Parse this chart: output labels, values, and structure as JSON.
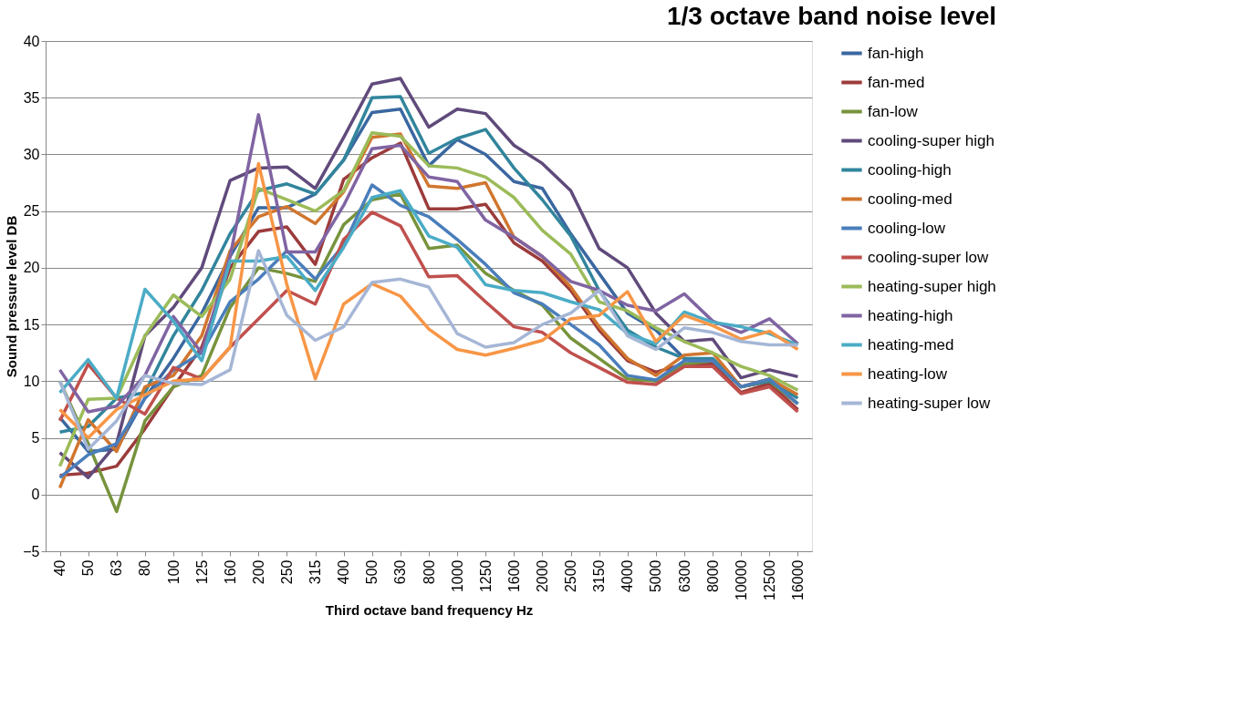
{
  "chart_data": {
    "type": "line",
    "title": "1/3 octave band noise level",
    "xlabel": "Third octave band frequency Hz",
    "ylabel": "Sound pressure level DB",
    "categories": [
      "40",
      "50",
      "63",
      "80",
      "100",
      "125",
      "160",
      "200",
      "250",
      "315",
      "400",
      "500",
      "630",
      "800",
      "1000",
      "1250",
      "1600",
      "2000",
      "2500",
      "3150",
      "4000",
      "5000",
      "6300",
      "8000",
      "10000",
      "12500",
      "16000"
    ],
    "ylim": [
      -5,
      40
    ],
    "yticks": [
      -5,
      0,
      5,
      10,
      15,
      20,
      25,
      30,
      35,
      40
    ],
    "grid": "y",
    "legend": "right",
    "marker": "none",
    "line_style": "solid",
    "series": [
      {
        "name": "fan-high",
        "color": "#3a67a0",
        "values": [
          6.8,
          3.8,
          4.0,
          8.5,
          12,
          16,
          21,
          25.3,
          25.3,
          26.5,
          29.5,
          33.7,
          34,
          29,
          31.3,
          30,
          27.6,
          27,
          23,
          19.5,
          16,
          14.5,
          12,
          11.8,
          9.5,
          10,
          8
        ]
      },
      {
        "name": "fan-med",
        "color": "#9c3b3b",
        "values": [
          1.7,
          1.9,
          2.5,
          5.8,
          9.5,
          13,
          20,
          23.2,
          23.6,
          20.3,
          27.8,
          29.7,
          31,
          25.2,
          25.2,
          25.6,
          22.2,
          20.6,
          18,
          14.5,
          11.8,
          10.8,
          11.5,
          11.5,
          9,
          9.8,
          7.5
        ]
      },
      {
        "name": "fan-low",
        "color": "#77933c",
        "values": [
          10,
          4.5,
          -1.5,
          6.5,
          9.5,
          10.5,
          16.5,
          20,
          19.5,
          18.8,
          23.8,
          26,
          26.5,
          21.7,
          22,
          19.5,
          18,
          16.7,
          13.8,
          12,
          10.2,
          10,
          11.5,
          11.8,
          9.5,
          10,
          8
        ]
      },
      {
        "name": "cooling-super high",
        "color": "#604a7b",
        "values": [
          3.7,
          1.5,
          4.5,
          14,
          16.5,
          20,
          27.7,
          28.8,
          28.9,
          27,
          31.5,
          36.2,
          36.7,
          32.4,
          34,
          33.6,
          30.8,
          29.2,
          26.8,
          21.7,
          20,
          16,
          13.5,
          13.7,
          10.3,
          11,
          10.4
        ]
      },
      {
        "name": "cooling-high",
        "color": "#31859c",
        "values": [
          5.5,
          6,
          8.5,
          9,
          14,
          18,
          23,
          26.8,
          27.4,
          26.5,
          29.5,
          35,
          35.1,
          30.1,
          31.4,
          32.2,
          28.8,
          26,
          22.8,
          18,
          14.5,
          13,
          12,
          12,
          9.5,
          10,
          8.5
        ]
      },
      {
        "name": "cooling-med",
        "color": "#d0762f",
        "values": [
          0.6,
          6.6,
          3.8,
          9.5,
          10.5,
          14,
          21.5,
          24.5,
          25.4,
          23.9,
          26.7,
          31.5,
          31.8,
          27.2,
          27,
          27.5,
          22.7,
          21,
          18.3,
          14.8,
          12,
          10.5,
          12.3,
          12.5,
          9.5,
          10.2,
          8.8
        ]
      },
      {
        "name": "cooling-low",
        "color": "#4a7ebb",
        "values": [
          1.5,
          3.5,
          4.5,
          8.5,
          11,
          12.5,
          17,
          19,
          21.5,
          19,
          22,
          27.3,
          25.5,
          24.5,
          22.5,
          20.3,
          17.8,
          16.8,
          15,
          13.2,
          10.5,
          10.1,
          11.8,
          11.8,
          9.5,
          10.2,
          8
        ]
      },
      {
        "name": "cooling-super low",
        "color": "#c0504d",
        "values": [
          6.5,
          11.5,
          8.5,
          7.1,
          11.2,
          10.2,
          13,
          15.5,
          18,
          16.8,
          22.5,
          24.9,
          23.7,
          19.2,
          19.3,
          17,
          14.8,
          14.3,
          12.5,
          11.2,
          9.9,
          9.7,
          11.3,
          11.3,
          8.9,
          9.5,
          7.3
        ]
      },
      {
        "name": "heating-super high",
        "color": "#9bbb59",
        "values": [
          2.5,
          8.4,
          8.5,
          14,
          17.6,
          15.7,
          19,
          27,
          26,
          25,
          26.8,
          31.9,
          31.6,
          29,
          28.8,
          28,
          26.2,
          23.3,
          21.2,
          17,
          16.2,
          14.7,
          13.5,
          12.5,
          11.3,
          10.5,
          9.2
        ]
      },
      {
        "name": "heating-high",
        "color": "#8064a2",
        "values": [
          11,
          7.3,
          7.8,
          10.5,
          15.7,
          12.5,
          21,
          33.5,
          21.4,
          21.4,
          25.5,
          30.5,
          30.8,
          28,
          27.6,
          24.2,
          22.7,
          21,
          18.8,
          18,
          16.7,
          16.2,
          17.7,
          15.3,
          14.3,
          15.5,
          13.3
        ]
      },
      {
        "name": "heating-med",
        "color": "#4bacc6",
        "values": [
          9,
          11.9,
          8.5,
          18.1,
          15.3,
          11.8,
          20.6,
          20.6,
          21,
          18,
          21.8,
          26.2,
          26.8,
          22.8,
          21.8,
          18.5,
          18,
          17.8,
          17,
          16.3,
          14.2,
          13.3,
          16.1,
          15.2,
          14.8,
          14.2,
          13.2
        ]
      },
      {
        "name": "heating-low",
        "color": "#f79646",
        "values": [
          7.5,
          5,
          7.5,
          8.8,
          10,
          10.2,
          13,
          29.2,
          18.5,
          10.2,
          16.8,
          18.6,
          17.5,
          14.6,
          12.8,
          12.3,
          12.9,
          13.6,
          15.5,
          15.8,
          17.9,
          13.5,
          15.8,
          14.9,
          13.7,
          14.4,
          12.8
        ]
      },
      {
        "name": "heating-super low",
        "color": "#a5b6d6",
        "values": [
          10,
          4,
          6.5,
          10.5,
          9.8,
          9.7,
          11,
          21.5,
          15.8,
          13.6,
          14.8,
          18.7,
          19,
          18.3,
          14.2,
          13,
          13.4,
          15,
          16,
          18,
          14,
          12.8,
          14.7,
          14.3,
          13.5,
          13.2,
          13.2
        ]
      }
    ]
  }
}
